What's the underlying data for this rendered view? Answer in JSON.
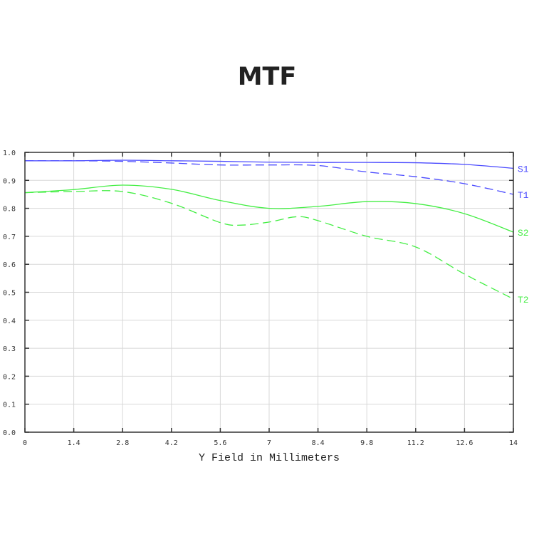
{
  "chart_data": {
    "type": "line",
    "title": "MTF",
    "xlabel": "Y Field in Millimeters",
    "ylabel": "",
    "xlim": [
      0,
      14
    ],
    "ylim": [
      0,
      1
    ],
    "x_ticks": [
      "0",
      "1.4",
      "2.8",
      "4.2",
      "5.6",
      "7",
      "8.4",
      "9.8",
      "11.2",
      "12.6",
      "14"
    ],
    "y_ticks": [
      "0.0",
      "0.1",
      "0.2",
      "0.3",
      "0.4",
      "0.5",
      "0.6",
      "0.7",
      "0.8",
      "0.9",
      "1.0"
    ],
    "grid": true,
    "legend": "curve labels at right end",
    "series": [
      {
        "name": "S1",
        "color": "#4a4aff",
        "style": "solid",
        "x": [
          0,
          1.4,
          2.8,
          4.2,
          5.6,
          7,
          8.4,
          9.8,
          11.2,
          12.6,
          14
        ],
        "y": [
          0.97,
          0.97,
          0.972,
          0.97,
          0.968,
          0.965,
          0.964,
          0.964,
          0.963,
          0.957,
          0.943
        ]
      },
      {
        "name": "T1",
        "color": "#4a4aff",
        "style": "dashed",
        "x": [
          0,
          1.4,
          2.8,
          4.2,
          5.6,
          7,
          8.4,
          9.8,
          11.2,
          12.6,
          14
        ],
        "y": [
          0.97,
          0.97,
          0.968,
          0.962,
          0.955,
          0.955,
          0.953,
          0.93,
          0.913,
          0.888,
          0.85
        ]
      },
      {
        "name": "S2",
        "color": "#44ee44",
        "style": "solid",
        "x": [
          0,
          1.4,
          2.8,
          4.2,
          5.6,
          7,
          8.4,
          9.8,
          11.2,
          12.6,
          14
        ],
        "y": [
          0.856,
          0.867,
          0.883,
          0.868,
          0.828,
          0.8,
          0.807,
          0.824,
          0.817,
          0.781,
          0.715
        ]
      },
      {
        "name": "T2",
        "color": "#44ee44",
        "style": "dashed",
        "x": [
          0,
          1.4,
          2.8,
          4.2,
          5.6,
          6.2,
          7,
          7.8,
          8.4,
          9.8,
          11.2,
          12.6,
          14
        ],
        "y": [
          0.856,
          0.86,
          0.86,
          0.818,
          0.749,
          0.74,
          0.751,
          0.77,
          0.756,
          0.7,
          0.662,
          0.565,
          0.476
        ]
      }
    ]
  }
}
